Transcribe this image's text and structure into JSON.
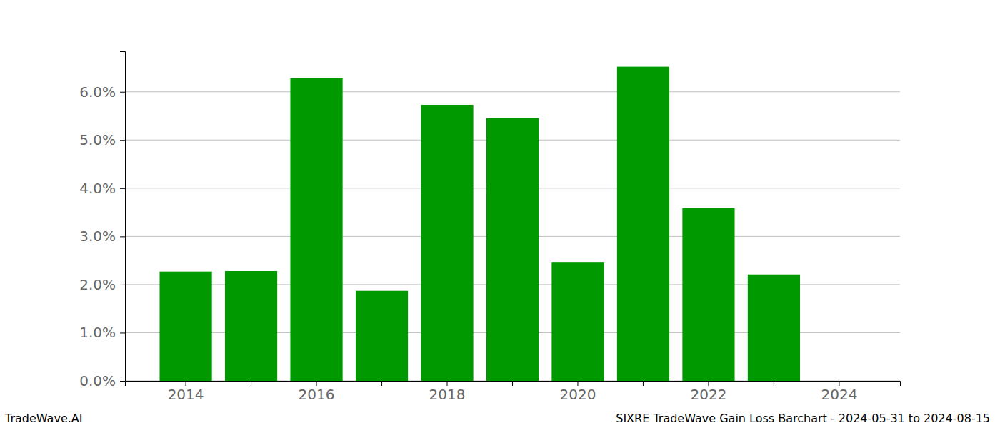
{
  "chart_data": {
    "type": "bar",
    "title": "SIXRE TradeWave Gain Loss Barchart - 2024-05-31 to 2024-08-15",
    "annotations": [
      "TradeWave.AI"
    ],
    "categories": [
      "2014",
      null,
      "2016",
      null,
      "2018",
      null,
      "2020",
      null,
      "2022",
      null,
      "2024"
    ],
    "values": [
      2.27,
      2.28,
      6.28,
      1.87,
      5.73,
      5.45,
      2.47,
      6.52,
      3.59,
      2.21,
      0
    ],
    "color": "#009900",
    "ylim": [
      0,
      6.84
    ],
    "yticks": [
      {
        "value": 0,
        "label": "0.0%"
      },
      {
        "value": 1,
        "label": "1.0%"
      },
      {
        "value": 2,
        "label": "2.0%"
      },
      {
        "value": 3,
        "label": "3.0%"
      },
      {
        "value": 4,
        "label": "4.0%"
      },
      {
        "value": 5,
        "label": "5.0%"
      },
      {
        "value": 6,
        "label": "6.0%"
      }
    ],
    "grid": true
  }
}
